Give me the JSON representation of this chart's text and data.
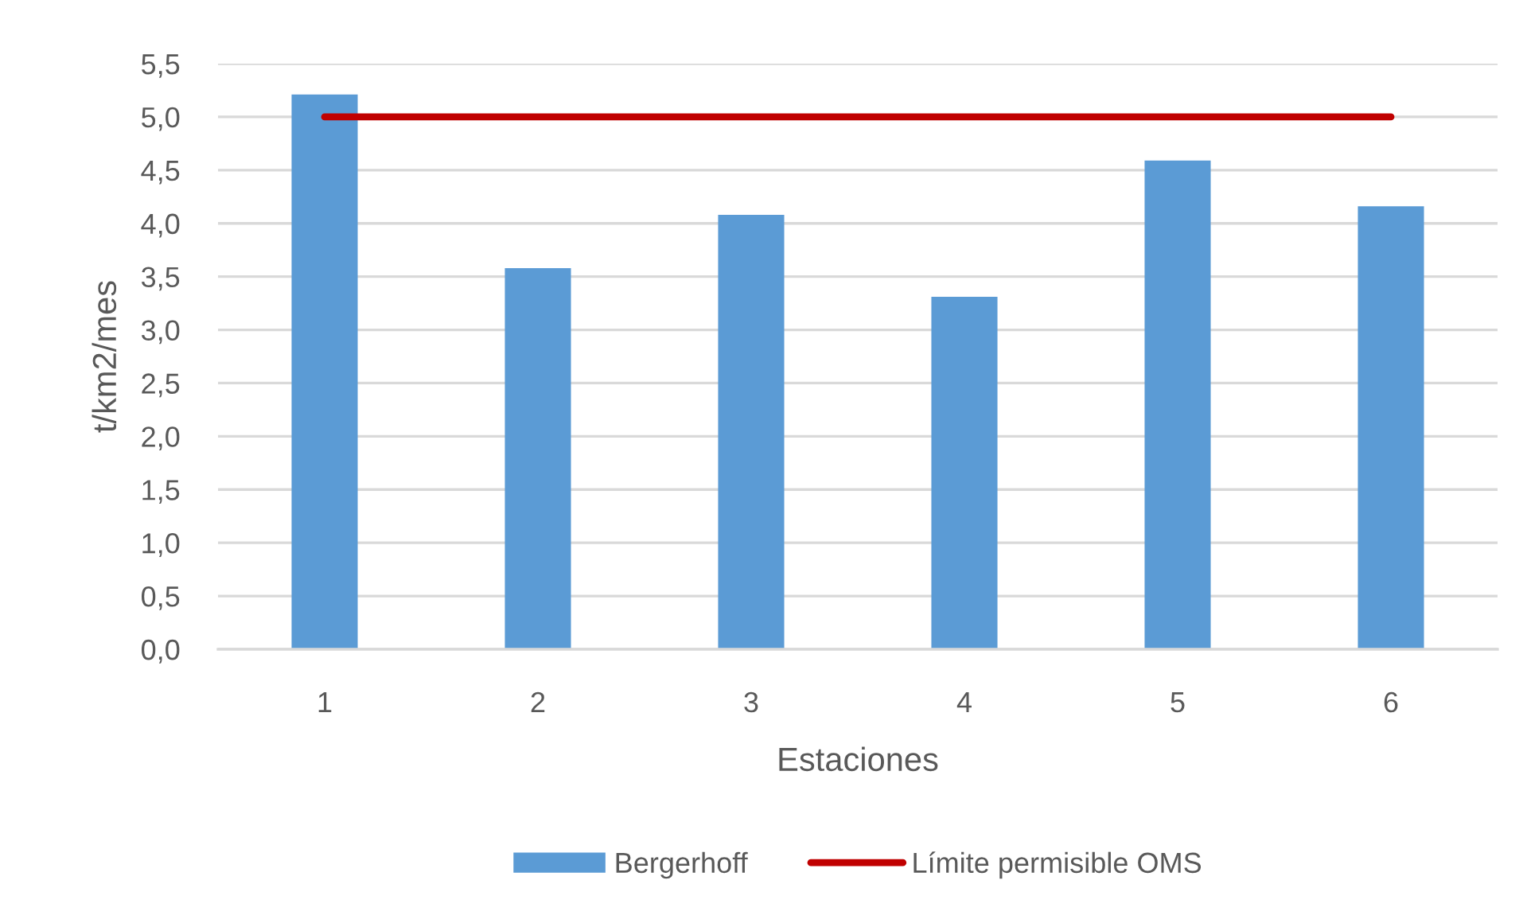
{
  "chart_data": {
    "type": "bar",
    "categories": [
      "1",
      "2",
      "3",
      "4",
      "5",
      "6"
    ],
    "xlabel": "Estaciones",
    "ylabel": "t/km2/mes",
    "series": [
      {
        "name": "Bergerhoff",
        "color": "#5b9bd5",
        "values": [
          5.21,
          3.58,
          4.08,
          3.31,
          4.59,
          4.16
        ]
      },
      {
        "name": "Límite permisible OMS",
        "type": "line",
        "color": "#c00000",
        "values": [
          5.0,
          5.0,
          5.0,
          5.0,
          5.0,
          5.0
        ]
      }
    ],
    "ylim": [
      0,
      5.5
    ],
    "yticks": [
      {
        "value": 0,
        "label": "0,0"
      },
      {
        "value": 0.5,
        "label": "0,5"
      },
      {
        "value": 1.0,
        "label": "1,0"
      },
      {
        "value": 1.5,
        "label": "1,5"
      },
      {
        "value": 2.0,
        "label": "2,0"
      },
      {
        "value": 2.5,
        "label": "2,5"
      },
      {
        "value": 3.0,
        "label": "3,0"
      },
      {
        "value": 3.5,
        "label": "3,5"
      },
      {
        "value": 4.0,
        "label": "4,0"
      },
      {
        "value": 4.5,
        "label": "4,5"
      },
      {
        "value": 5.0,
        "label": "5,0"
      },
      {
        "value": 5.5,
        "label": "5,5"
      }
    ],
    "grid": "y",
    "legend": "bottom",
    "marker": "none",
    "line_style": "solid"
  }
}
